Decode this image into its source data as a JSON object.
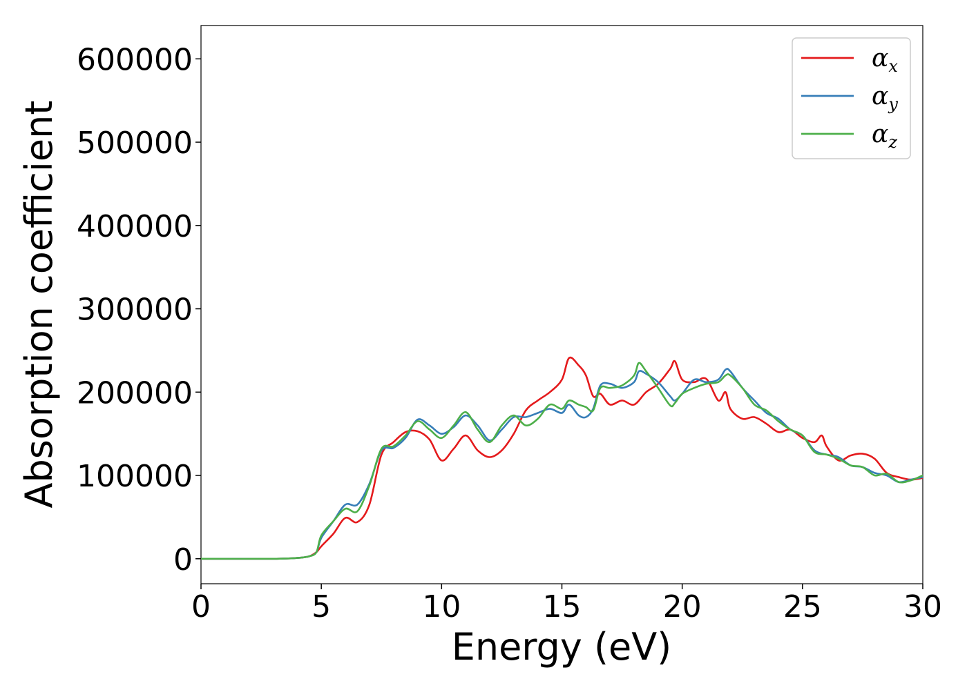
{
  "chart_data": {
    "type": "line",
    "xlabel": "Energy (eV)",
    "ylabel": "Absorption coefficient",
    "xlim": [
      0,
      30
    ],
    "ylim": [
      -30000,
      640000
    ],
    "x_ticks": [
      0,
      5,
      10,
      15,
      20,
      25,
      30
    ],
    "y_ticks": [
      0,
      100000,
      200000,
      300000,
      400000,
      500000,
      600000
    ],
    "x_tick_labels": [
      "0",
      "5",
      "10",
      "15",
      "20",
      "25",
      "30"
    ],
    "y_tick_labels": [
      "0",
      "100000",
      "200000",
      "300000",
      "400000",
      "500000",
      "600000"
    ],
    "grid": false,
    "legend_position": "top-right",
    "series": [
      {
        "name": "α_x",
        "label_base": "α",
        "label_sub": "x",
        "color": "#e41a1c",
        "points": [
          [
            0,
            0
          ],
          [
            3,
            0
          ],
          [
            4,
            1000
          ],
          [
            4.5,
            3000
          ],
          [
            4.8,
            8000
          ],
          [
            5,
            15000
          ],
          [
            5.5,
            30000
          ],
          [
            6,
            49000
          ],
          [
            6.5,
            44000
          ],
          [
            7,
            65000
          ],
          [
            7.5,
            125000
          ],
          [
            8,
            140000
          ],
          [
            8.5,
            152000
          ],
          [
            9,
            153000
          ],
          [
            9.5,
            143000
          ],
          [
            10,
            118000
          ],
          [
            10.5,
            132000
          ],
          [
            11,
            148000
          ],
          [
            11.5,
            130000
          ],
          [
            12,
            122000
          ],
          [
            12.5,
            130000
          ],
          [
            13,
            150000
          ],
          [
            13.5,
            178000
          ],
          [
            14,
            190000
          ],
          [
            14.5,
            200000
          ],
          [
            15,
            215000
          ],
          [
            15.3,
            241000
          ],
          [
            15.7,
            232000
          ],
          [
            16,
            220000
          ],
          [
            16.3,
            195000
          ],
          [
            16.6,
            198000
          ],
          [
            17,
            185000
          ],
          [
            17.5,
            190000
          ],
          [
            18,
            185000
          ],
          [
            18.5,
            200000
          ],
          [
            19,
            210000
          ],
          [
            19.5,
            228000
          ],
          [
            19.7,
            237000
          ],
          [
            20,
            215000
          ],
          [
            20.5,
            212000
          ],
          [
            21,
            216000
          ],
          [
            21.5,
            190000
          ],
          [
            21.8,
            200000
          ],
          [
            22,
            180000
          ],
          [
            22.5,
            168000
          ],
          [
            23,
            170000
          ],
          [
            23.5,
            162000
          ],
          [
            24,
            152000
          ],
          [
            24.5,
            155000
          ],
          [
            25,
            145000
          ],
          [
            25.5,
            140000
          ],
          [
            25.8,
            148000
          ],
          [
            26,
            135000
          ],
          [
            26.5,
            118000
          ],
          [
            27,
            124000
          ],
          [
            27.5,
            126000
          ],
          [
            28,
            120000
          ],
          [
            28.5,
            103000
          ],
          [
            29,
            98000
          ],
          [
            29.5,
            95000
          ],
          [
            30,
            97000
          ]
        ]
      },
      {
        "name": "α_y",
        "label_base": "α",
        "label_sub": "y",
        "color": "#377eb8",
        "points": [
          [
            0,
            0
          ],
          [
            3,
            0
          ],
          [
            4,
            1000
          ],
          [
            4.5,
            3000
          ],
          [
            4.8,
            8000
          ],
          [
            5,
            25000
          ],
          [
            5.5,
            45000
          ],
          [
            6,
            65000
          ],
          [
            6.5,
            65000
          ],
          [
            7,
            90000
          ],
          [
            7.5,
            130000
          ],
          [
            8,
            133000
          ],
          [
            8.5,
            145000
          ],
          [
            9,
            167000
          ],
          [
            9.5,
            160000
          ],
          [
            10,
            150000
          ],
          [
            10.5,
            158000
          ],
          [
            11,
            172000
          ],
          [
            11.5,
            160000
          ],
          [
            12,
            142000
          ],
          [
            12.5,
            155000
          ],
          [
            13,
            170000
          ],
          [
            13.5,
            170000
          ],
          [
            14,
            175000
          ],
          [
            14.5,
            180000
          ],
          [
            15,
            175000
          ],
          [
            15.3,
            185000
          ],
          [
            15.7,
            172000
          ],
          [
            16,
            170000
          ],
          [
            16.3,
            180000
          ],
          [
            16.6,
            208000
          ],
          [
            17,
            210000
          ],
          [
            17.5,
            205000
          ],
          [
            18,
            212000
          ],
          [
            18.2,
            225000
          ],
          [
            18.5,
            222000
          ],
          [
            19,
            212000
          ],
          [
            19.5,
            195000
          ],
          [
            19.7,
            190000
          ],
          [
            20,
            198000
          ],
          [
            20.5,
            215000
          ],
          [
            21,
            212000
          ],
          [
            21.5,
            215000
          ],
          [
            21.8,
            227000
          ],
          [
            22,
            225000
          ],
          [
            22.5,
            205000
          ],
          [
            23,
            190000
          ],
          [
            23.5,
            175000
          ],
          [
            24,
            168000
          ],
          [
            24.5,
            155000
          ],
          [
            25,
            148000
          ],
          [
            25.5,
            130000
          ],
          [
            26,
            125000
          ],
          [
            26.5,
            122000
          ],
          [
            27,
            112000
          ],
          [
            27.5,
            110000
          ],
          [
            28,
            103000
          ],
          [
            28.5,
            100000
          ],
          [
            29,
            92000
          ],
          [
            29.5,
            95000
          ],
          [
            30,
            98000
          ]
        ]
      },
      {
        "name": "α_z",
        "label_base": "α",
        "label_sub": "z",
        "color": "#4daf4a",
        "points": [
          [
            0,
            0
          ],
          [
            3,
            0
          ],
          [
            4,
            1000
          ],
          [
            4.5,
            3000
          ],
          [
            4.8,
            8000
          ],
          [
            5,
            28000
          ],
          [
            5.5,
            45000
          ],
          [
            6,
            60000
          ],
          [
            6.5,
            57000
          ],
          [
            7,
            88000
          ],
          [
            7.5,
            132000
          ],
          [
            8,
            135000
          ],
          [
            8.5,
            148000
          ],
          [
            9,
            165000
          ],
          [
            9.5,
            155000
          ],
          [
            10,
            145000
          ],
          [
            10.5,
            160000
          ],
          [
            11,
            176000
          ],
          [
            11.5,
            155000
          ],
          [
            12,
            140000
          ],
          [
            12.5,
            160000
          ],
          [
            13,
            172000
          ],
          [
            13.5,
            160000
          ],
          [
            14,
            168000
          ],
          [
            14.5,
            185000
          ],
          [
            15,
            180000
          ],
          [
            15.3,
            190000
          ],
          [
            15.7,
            185000
          ],
          [
            16,
            182000
          ],
          [
            16.3,
            178000
          ],
          [
            16.6,
            205000
          ],
          [
            17,
            205000
          ],
          [
            17.5,
            208000
          ],
          [
            18,
            220000
          ],
          [
            18.2,
            235000
          ],
          [
            18.5,
            225000
          ],
          [
            19,
            205000
          ],
          [
            19.5,
            184000
          ],
          [
            19.7,
            187000
          ],
          [
            20,
            198000
          ],
          [
            20.5,
            205000
          ],
          [
            21,
            210000
          ],
          [
            21.5,
            212000
          ],
          [
            21.8,
            220000
          ],
          [
            22,
            220000
          ],
          [
            22.5,
            205000
          ],
          [
            23,
            185000
          ],
          [
            23.5,
            178000
          ],
          [
            24,
            165000
          ],
          [
            24.5,
            155000
          ],
          [
            25,
            148000
          ],
          [
            25.5,
            128000
          ],
          [
            26,
            125000
          ],
          [
            26.5,
            120000
          ],
          [
            27,
            112000
          ],
          [
            27.5,
            110000
          ],
          [
            28,
            100000
          ],
          [
            28.5,
            102000
          ],
          [
            29,
            92000
          ],
          [
            29.5,
            94000
          ],
          [
            30,
            100000
          ]
        ]
      }
    ]
  }
}
